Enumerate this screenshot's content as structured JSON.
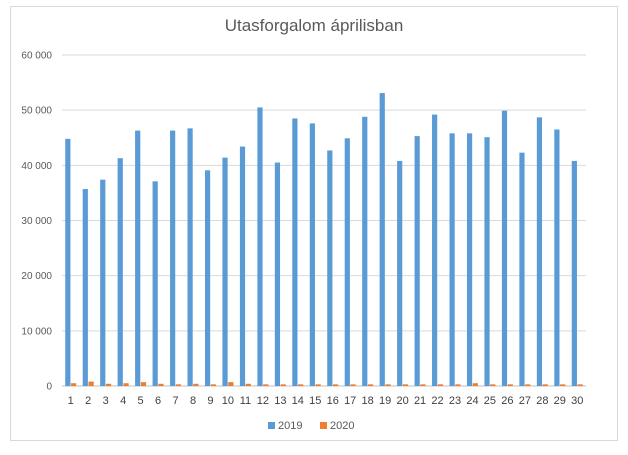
{
  "chart_data": {
    "type": "bar",
    "title": "Utasforgalom áprilisban",
    "xlabel": "",
    "ylabel": "",
    "categories": [
      "1",
      "2",
      "3",
      "4",
      "5",
      "6",
      "7",
      "8",
      "9",
      "10",
      "11",
      "12",
      "13",
      "14",
      "15",
      "16",
      "17",
      "18",
      "19",
      "20",
      "21",
      "22",
      "23",
      "24",
      "25",
      "26",
      "27",
      "28",
      "29",
      "30"
    ],
    "ylim": [
      0,
      60000
    ],
    "yticks": [
      0,
      10000,
      20000,
      30000,
      40000,
      50000,
      60000
    ],
    "ytick_labels": [
      "0",
      "10 000",
      "20 000",
      "30 000",
      "40 000",
      "50 000",
      "60 000"
    ],
    "grid": true,
    "legend_position": "bottom",
    "series": [
      {
        "name": "2019",
        "color": "#5b9bd5",
        "values": [
          44800,
          35700,
          37400,
          41300,
          46300,
          37100,
          46300,
          46700,
          39100,
          41400,
          43400,
          50500,
          40500,
          48500,
          47600,
          42700,
          44900,
          48800,
          53100,
          40800,
          45300,
          49200,
          45800,
          45800,
          45100,
          49900,
          42300,
          48700,
          46500,
          40800
        ]
      },
      {
        "name": "2020",
        "color": "#ed7d31",
        "values": [
          500,
          800,
          400,
          500,
          700,
          400,
          300,
          400,
          300,
          700,
          400,
          300,
          300,
          300,
          300,
          300,
          300,
          300,
          300,
          300,
          300,
          300,
          300,
          500,
          300,
          300,
          300,
          300,
          300,
          300
        ]
      }
    ]
  }
}
